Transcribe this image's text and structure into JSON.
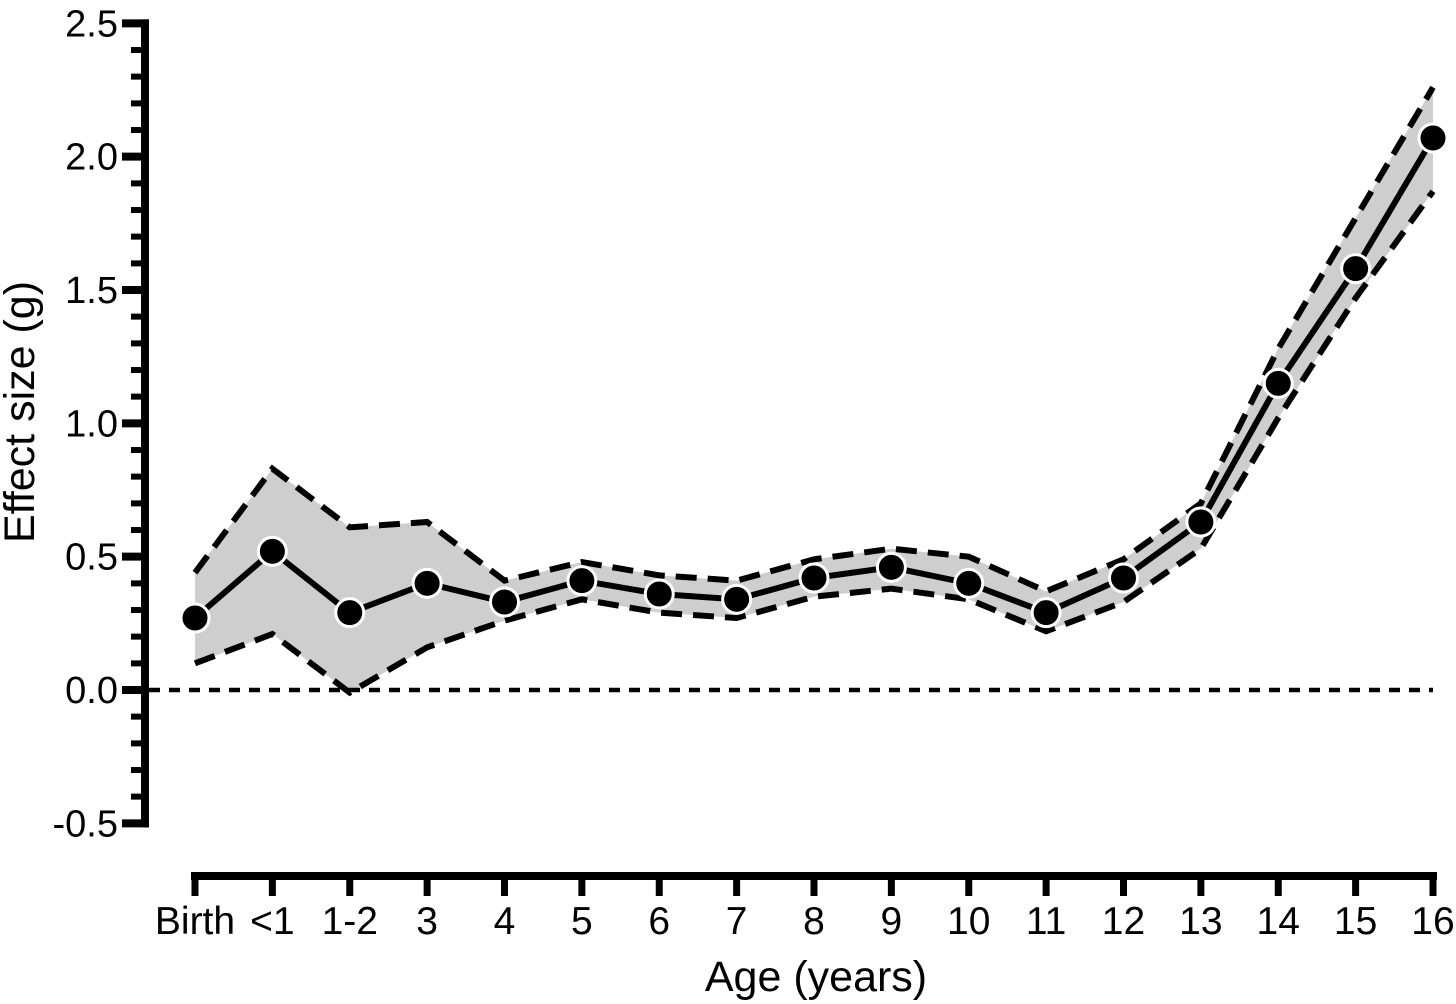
{
  "chart_data": {
    "type": "line",
    "title": "",
    "xlabel": "Age (years)",
    "ylabel": "Effect size (g)",
    "categories": [
      "Birth",
      "<1",
      "1-2",
      "3",
      "4",
      "5",
      "6",
      "7",
      "8",
      "9",
      "10",
      "11",
      "12",
      "13",
      "14",
      "15",
      "16"
    ],
    "series": [
      {
        "name": "effect_size",
        "style": "solid line with filled circle markers",
        "values": [
          0.27,
          0.52,
          0.29,
          0.4,
          0.33,
          0.41,
          0.36,
          0.34,
          0.42,
          0.46,
          0.4,
          0.29,
          0.42,
          0.63,
          1.15,
          1.58,
          2.07
        ]
      },
      {
        "name": "ci_upper",
        "style": "dashed line (upper edge of shaded band)",
        "values": [
          0.44,
          0.83,
          0.61,
          0.63,
          0.41,
          0.48,
          0.43,
          0.41,
          0.49,
          0.53,
          0.5,
          0.37,
          0.49,
          0.7,
          1.28,
          1.77,
          2.26
        ]
      },
      {
        "name": "ci_lower",
        "style": "dashed line (lower edge of shaded band)",
        "values": [
          0.1,
          0.21,
          -0.01,
          0.16,
          0.26,
          0.34,
          0.29,
          0.27,
          0.35,
          0.38,
          0.34,
          0.22,
          0.33,
          0.53,
          1.02,
          1.47,
          1.87
        ]
      }
    ],
    "band": {
      "between": [
        "ci_lower",
        "ci_upper"
      ],
      "fill": "#cecece"
    },
    "reference_line": {
      "y": 0.0,
      "style": "dashed"
    },
    "ylim": [
      -0.5,
      2.5
    ],
    "y_ticks": [
      2.5,
      2.0,
      1.5,
      1.0,
      0.5,
      0.0,
      -0.5
    ],
    "y_tick_labels": [
      "2.5",
      "2.0",
      "1.5",
      "1.0",
      "0.5",
      "0.0",
      "-0.5"
    ],
    "y_minor_tick_step": 0.1,
    "grid": false,
    "legend": "none",
    "colors": {
      "line": "#000000",
      "marker": "#000000",
      "band": "#cecece",
      "axis": "#000000",
      "background": "#ffffff"
    }
  }
}
